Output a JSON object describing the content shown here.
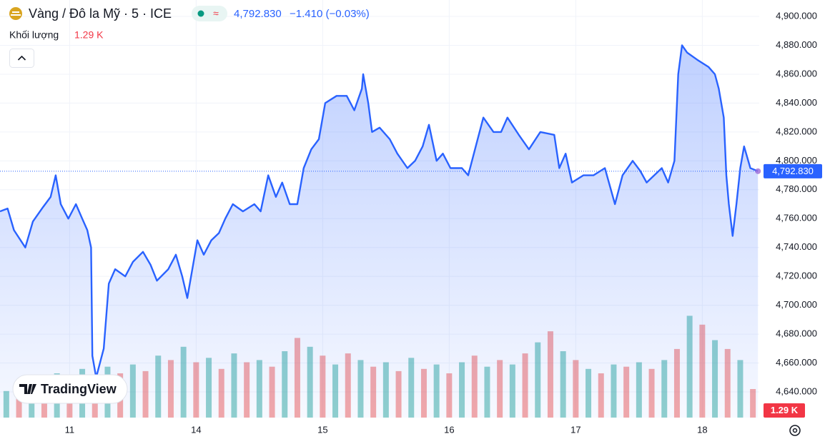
{
  "chart_data": {
    "type": "area",
    "title": "Vàng / Đô la Mỹ · 5 · ICE",
    "last_price": "4,792.830",
    "change": "−1.410 (−0.03%)",
    "volume_label": "Khối lượng",
    "volume_value": "1.29 K",
    "watermark": "TradingView",
    "xlim": [
      -0.55,
      5.45
    ],
    "xticks": [
      {
        "value": 0,
        "label": "11"
      },
      {
        "value": 1,
        "label": "14"
      },
      {
        "value": 2,
        "label": "15"
      },
      {
        "value": 3,
        "label": "16"
      },
      {
        "value": 4,
        "label": "17"
      },
      {
        "value": 5,
        "label": "18"
      }
    ],
    "ylim": [
      4622.2,
      4911.4
    ],
    "yticks": [
      {
        "value": 4640,
        "label": "4,640.000"
      },
      {
        "value": 4660,
        "label": "4,660.000"
      },
      {
        "value": 4680,
        "label": "4,680.000"
      },
      {
        "value": 4700,
        "label": "4,700.000"
      },
      {
        "value": 4720,
        "label": "4,720.000"
      },
      {
        "value": 4740,
        "label": "4,740.000"
      },
      {
        "value": 4760,
        "label": "4,760.000"
      },
      {
        "value": 4780,
        "label": "4,780.000"
      },
      {
        "value": 4800,
        "label": "4,800.000"
      },
      {
        "value": 4820,
        "label": "4,820.000"
      },
      {
        "value": 4840,
        "label": "4,840.000"
      },
      {
        "value": 4860,
        "label": "4,860.000"
      },
      {
        "value": 4880,
        "label": "4,880.000"
      },
      {
        "value": 4900,
        "label": "4,900.000"
      }
    ],
    "grid": true,
    "series": [
      {
        "color": "#2962ff",
        "x": [
          -0.55,
          -0.49,
          -0.44,
          -0.35,
          -0.29,
          -0.21,
          -0.15,
          -0.11,
          -0.07,
          -0.01,
          0.05,
          0.1,
          0.14,
          0.17,
          0.18,
          0.21,
          0.27,
          0.31,
          0.36,
          0.44,
          0.5,
          0.58,
          0.64,
          0.69,
          0.78,
          0.84,
          0.89,
          0.93,
          0.98,
          1.01,
          1.06,
          1.12,
          1.18,
          1.23,
          1.29,
          1.37,
          1.46,
          1.51,
          1.57,
          1.63,
          1.68,
          1.74,
          1.8,
          1.85,
          1.91,
          1.97,
          2.02,
          2.11,
          2.19,
          2.25,
          2.31,
          2.32,
          2.36,
          2.39,
          2.45,
          2.53,
          2.59,
          2.67,
          2.73,
          2.79,
          2.84,
          2.9,
          2.95,
          3.01,
          3.1,
          3.15,
          3.21,
          3.27,
          3.35,
          3.41,
          3.46,
          3.55,
          3.63,
          3.72,
          3.83,
          3.87,
          3.92,
          3.97,
          4.06,
          4.14,
          4.23,
          4.31,
          4.37,
          4.45,
          4.51,
          4.56,
          4.62,
          4.68,
          4.73,
          4.78,
          4.81,
          4.84,
          4.88,
          4.96,
          5.05,
          5.1,
          5.13,
          5.17,
          5.19,
          5.21,
          5.24,
          5.27,
          5.3,
          5.33,
          5.38,
          5.44
        ],
        "values": [
          4765,
          4767,
          4752,
          4740,
          4758,
          4768,
          4775,
          4790,
          4770,
          4760,
          4770,
          4760,
          4752,
          4740,
          4665,
          4650,
          4670,
          4715,
          4725,
          4720,
          4730,
          4737,
          4728,
          4717,
          4725,
          4735,
          4720,
          4705,
          4730,
          4745,
          4735,
          4745,
          4750,
          4760,
          4770,
          4765,
          4770,
          4765,
          4790,
          4775,
          4785,
          4770,
          4770,
          4795,
          4808,
          4815,
          4840,
          4845,
          4845,
          4835,
          4850,
          4860,
          4840,
          4820,
          4823,
          4815,
          4805,
          4795,
          4800,
          4810,
          4825,
          4800,
          4805,
          4795,
          4795,
          4790,
          4810,
          4830,
          4820,
          4820,
          4830,
          4818,
          4808,
          4820,
          4818,
          4795,
          4805,
          4785,
          4790,
          4790,
          4795,
          4770,
          4790,
          4800,
          4793,
          4785,
          4790,
          4795,
          4785,
          4800,
          4860,
          4880,
          4875,
          4870,
          4865,
          4860,
          4850,
          4830,
          4790,
          4770,
          4748,
          4770,
          4795,
          4810,
          4795,
          4792.83
        ],
        "value_labels": {
          "105": "4,792.830"
        }
      }
    ],
    "volume": {
      "colors": [
        "#26a69a",
        "#ef5350"
      ],
      "vlim": [
        0,
        5
      ],
      "x": [
        -0.5,
        -0.4,
        -0.3,
        -0.2,
        -0.1,
        0,
        0.1,
        0.2,
        0.3,
        0.4,
        0.5,
        0.6,
        0.7,
        0.8,
        0.9,
        1,
        1.1,
        1.2,
        1.3,
        1.4,
        1.5,
        1.6,
        1.7,
        1.8,
        1.9,
        2,
        2.1,
        2.2,
        2.3,
        2.4,
        2.5,
        2.6,
        2.7,
        2.8,
        2.9,
        3,
        3.1,
        3.2,
        3.3,
        3.4,
        3.5,
        3.6,
        3.7,
        3.8,
        3.9,
        4,
        4.1,
        4.2,
        4.3,
        4.4,
        4.5,
        4.6,
        4.7,
        4.8,
        4.9,
        5,
        5.1,
        5.2,
        5.3,
        5.4
      ],
      "values": [
        1.2,
        1.5,
        1.8,
        1.4,
        2.0,
        1.6,
        2.2,
        1.9,
        2.3,
        2.0,
        2.4,
        2.1,
        2.8,
        2.6,
        3.2,
        2.5,
        2.7,
        2.2,
        2.9,
        2.5,
        2.6,
        2.3,
        3.0,
        3.6,
        3.2,
        2.8,
        2.4,
        2.9,
        2.6,
        2.3,
        2.5,
        2.1,
        2.7,
        2.2,
        2.4,
        2.0,
        2.5,
        2.8,
        2.3,
        2.6,
        2.4,
        2.9,
        3.4,
        3.9,
        3.0,
        2.6,
        2.2,
        2.0,
        2.4,
        2.3,
        2.5,
        2.2,
        2.6,
        3.1,
        4.6,
        4.2,
        3.5,
        3.1,
        2.6,
        1.29
      ]
    }
  }
}
